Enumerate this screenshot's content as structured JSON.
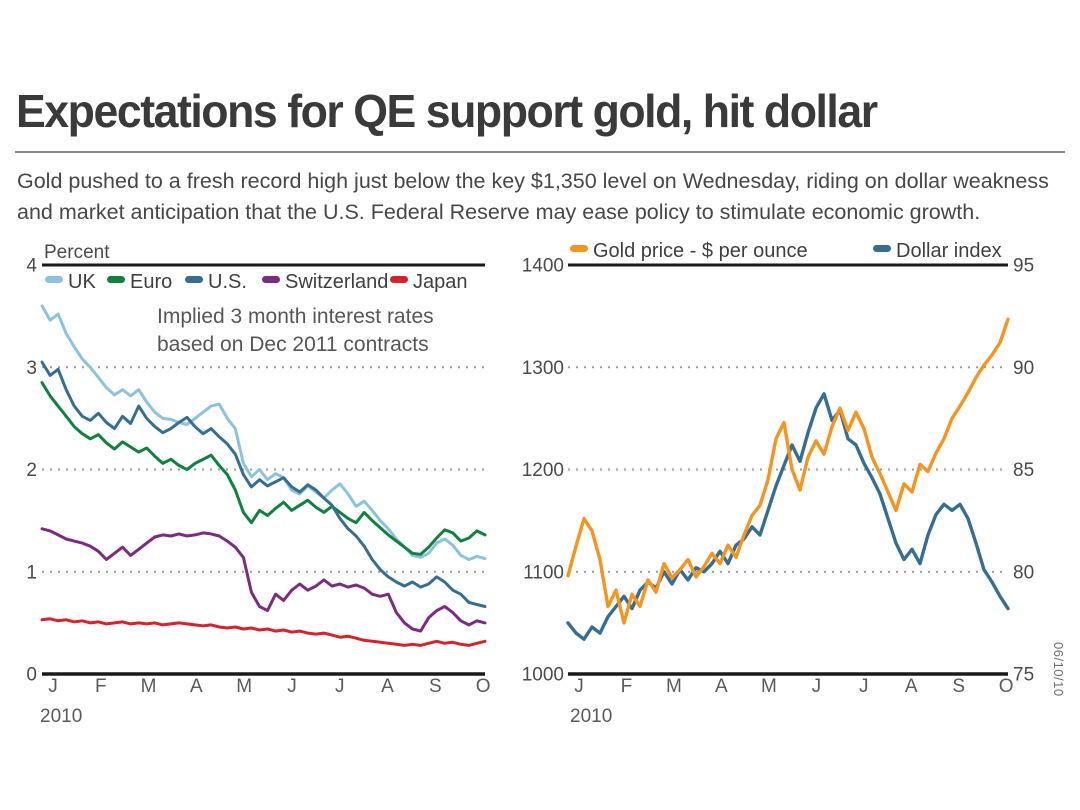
{
  "header": {
    "title": "Expectations for QE support gold, hit dollar",
    "subtitle": "Gold pushed to a fresh record high just below the key $1,350 level on Wednesday, riding on dollar weakness and market anticipation that the U.S. Federal Reserve may ease policy to stimulate economic growth."
  },
  "footer": {
    "date_note": "06/10/10"
  },
  "colors": {
    "axis_line": "#1a1a1a",
    "gridline": "#9c9c9c",
    "tick_text": "#4a4a4a",
    "month_text": "#5a5a5a",
    "legend_text": "#3f3f3f"
  },
  "chart_data": [
    {
      "id": "interest-rates",
      "type": "line",
      "ylabel": "Percent",
      "annotation_line1": "Implied 3 month interest rates",
      "annotation_line2": "based on Dec 2011 contracts",
      "ylim": [
        0,
        4
      ],
      "yticks": [
        4,
        3,
        2,
        1,
        0
      ],
      "grid": "dotted horizontal",
      "legend_position": "top-inside",
      "xticklabels": [
        "J",
        "F",
        "M",
        "A",
        "M",
        "J",
        "J",
        "A",
        "S",
        "O"
      ],
      "year_label": "2010",
      "series": [
        {
          "name": "UK",
          "color": "#8cc2e0",
          "values": [
            3.6,
            3.46,
            3.52,
            3.33,
            3.2,
            3.08,
            3.0,
            2.9,
            2.8,
            2.73,
            2.78,
            2.72,
            2.78,
            2.66,
            2.56,
            2.5,
            2.49,
            2.46,
            2.44,
            2.5,
            2.56,
            2.62,
            2.64,
            2.5,
            2.4,
            2.06,
            1.93,
            2.0,
            1.9,
            1.96,
            1.92,
            1.8,
            1.76,
            1.84,
            1.78,
            1.72,
            1.8,
            1.86,
            1.76,
            1.64,
            1.69,
            1.6,
            1.5,
            1.42,
            1.32,
            1.24,
            1.16,
            1.14,
            1.18,
            1.28,
            1.32,
            1.26,
            1.16,
            1.12,
            1.15,
            1.13
          ]
        },
        {
          "name": "Euro",
          "color": "#10813e",
          "values": [
            2.85,
            2.72,
            2.62,
            2.52,
            2.42,
            2.35,
            2.3,
            2.34,
            2.26,
            2.2,
            2.27,
            2.22,
            2.17,
            2.21,
            2.13,
            2.06,
            2.1,
            2.04,
            2.0,
            2.06,
            2.1,
            2.14,
            2.04,
            1.95,
            1.8,
            1.58,
            1.48,
            1.6,
            1.55,
            1.62,
            1.68,
            1.6,
            1.65,
            1.7,
            1.63,
            1.58,
            1.64,
            1.58,
            1.52,
            1.48,
            1.58,
            1.5,
            1.43,
            1.36,
            1.3,
            1.24,
            1.18,
            1.17,
            1.24,
            1.33,
            1.41,
            1.38,
            1.3,
            1.33,
            1.4,
            1.36
          ]
        },
        {
          "name": "U.S.",
          "color": "#356e93",
          "values": [
            3.05,
            2.92,
            2.98,
            2.78,
            2.62,
            2.52,
            2.48,
            2.55,
            2.46,
            2.4,
            2.52,
            2.45,
            2.62,
            2.5,
            2.42,
            2.36,
            2.4,
            2.46,
            2.51,
            2.42,
            2.35,
            2.4,
            2.32,
            2.25,
            2.15,
            1.95,
            1.83,
            1.9,
            1.84,
            1.88,
            1.92,
            1.83,
            1.78,
            1.85,
            1.8,
            1.72,
            1.65,
            1.52,
            1.42,
            1.35,
            1.25,
            1.12,
            1.02,
            0.95,
            0.9,
            0.86,
            0.9,
            0.85,
            0.88,
            0.95,
            0.9,
            0.82,
            0.78,
            0.7,
            0.68,
            0.66
          ]
        },
        {
          "name": "Switzerland",
          "color": "#7c2c80",
          "values": [
            1.42,
            1.4,
            1.36,
            1.32,
            1.3,
            1.28,
            1.25,
            1.2,
            1.12,
            1.18,
            1.24,
            1.16,
            1.22,
            1.28,
            1.34,
            1.36,
            1.35,
            1.37,
            1.35,
            1.36,
            1.38,
            1.37,
            1.35,
            1.3,
            1.24,
            1.14,
            0.8,
            0.66,
            0.62,
            0.78,
            0.72,
            0.82,
            0.88,
            0.82,
            0.86,
            0.92,
            0.86,
            0.88,
            0.85,
            0.87,
            0.84,
            0.78,
            0.76,
            0.78,
            0.6,
            0.5,
            0.44,
            0.42,
            0.55,
            0.62,
            0.66,
            0.6,
            0.52,
            0.48,
            0.52,
            0.5
          ]
        },
        {
          "name": "Japan",
          "color": "#d7222b",
          "values": [
            0.53,
            0.54,
            0.52,
            0.53,
            0.51,
            0.52,
            0.5,
            0.51,
            0.49,
            0.5,
            0.51,
            0.49,
            0.5,
            0.49,
            0.5,
            0.48,
            0.49,
            0.5,
            0.49,
            0.48,
            0.47,
            0.48,
            0.46,
            0.45,
            0.46,
            0.44,
            0.45,
            0.43,
            0.44,
            0.42,
            0.43,
            0.41,
            0.42,
            0.4,
            0.39,
            0.4,
            0.38,
            0.36,
            0.37,
            0.35,
            0.33,
            0.32,
            0.31,
            0.3,
            0.29,
            0.28,
            0.29,
            0.28,
            0.3,
            0.32,
            0.3,
            0.31,
            0.29,
            0.28,
            0.3,
            0.32
          ]
        }
      ]
    },
    {
      "id": "gold-dollar",
      "type": "line",
      "ylim_left": [
        1000,
        1400
      ],
      "ylim_right": [
        75,
        95
      ],
      "yticks_left": [
        1400,
        1300,
        1200,
        1100,
        1000
      ],
      "yticks_right": [
        95,
        90,
        85,
        80,
        75
      ],
      "grid": "dotted horizontal",
      "legend_position": "top-outside",
      "xticklabels": [
        "J",
        "F",
        "M",
        "A",
        "M",
        "J",
        "J",
        "A",
        "S",
        "O"
      ],
      "year_label": "2010",
      "series": [
        {
          "name": "Dollar index",
          "axis": "right",
          "color": "#356e93",
          "values": [
            77.5,
            77.0,
            76.7,
            77.3,
            77.0,
            77.8,
            78.3,
            78.8,
            78.2,
            79.1,
            79.5,
            79.2,
            80.0,
            79.4,
            80.1,
            79.6,
            80.2,
            80.0,
            80.4,
            81.0,
            80.4,
            81.3,
            81.6,
            82.2,
            81.8,
            83.0,
            84.2,
            85.2,
            86.2,
            85.4,
            86.8,
            88.0,
            88.7,
            87.4,
            87.9,
            86.5,
            86.2,
            85.3,
            84.6,
            83.8,
            82.6,
            81.4,
            80.6,
            81.1,
            80.4,
            81.8,
            82.8,
            83.3,
            83.0,
            83.3,
            82.6,
            81.4,
            80.1,
            79.5,
            78.8,
            78.2
          ]
        },
        {
          "name": "Gold price - $ per ounce",
          "axis": "left",
          "color": "#f6941e",
          "values": [
            1096,
            1125,
            1152,
            1140,
            1112,
            1066,
            1082,
            1050,
            1078,
            1066,
            1092,
            1080,
            1108,
            1094,
            1102,
            1112,
            1095,
            1105,
            1118,
            1108,
            1126,
            1114,
            1136,
            1155,
            1165,
            1190,
            1230,
            1246,
            1200,
            1180,
            1212,
            1228,
            1215,
            1242,
            1260,
            1238,
            1256,
            1240,
            1212,
            1196,
            1178,
            1160,
            1186,
            1178,
            1205,
            1198,
            1216,
            1230,
            1250,
            1262,
            1275,
            1290,
            1302,
            1312,
            1324,
            1347
          ]
        }
      ],
      "legend_order": [
        "Gold price - $ per ounce",
        "Dollar index"
      ]
    }
  ]
}
